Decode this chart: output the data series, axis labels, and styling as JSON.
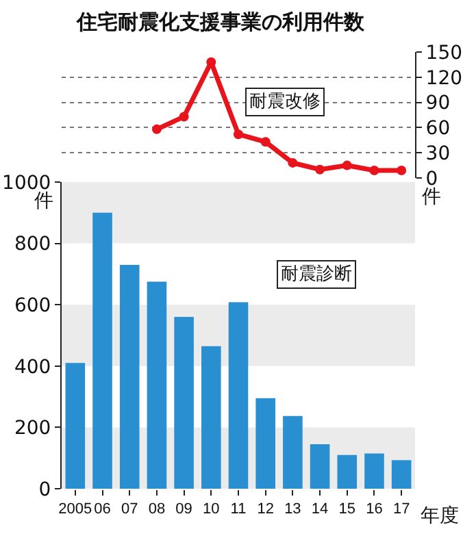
{
  "chart_data": [
    {
      "type": "line",
      "title": "住宅耐震化支援事業の利用件数",
      "ylabel": "件",
      "categories": [
        "2005",
        "06",
        "07",
        "08",
        "09",
        "10",
        "11",
        "12",
        "13",
        "14",
        "15",
        "16",
        "17"
      ],
      "series": [
        {
          "name": "耐震改修",
          "color": "#e8141c",
          "values": [
            null,
            null,
            null,
            58,
            73,
            138,
            52,
            43,
            18,
            10,
            15,
            9,
            9
          ]
        }
      ],
      "ylim": [
        0,
        150
      ],
      "yticks": [
        0,
        30,
        60,
        90,
        120,
        150
      ],
      "grid": "y",
      "marker": "circle",
      "line_style": "solid",
      "tick_labels": "y"
    },
    {
      "type": "bar",
      "xlabel": "年度",
      "ylabel": "件",
      "categories": [
        "2005",
        "06",
        "07",
        "08",
        "09",
        "10",
        "11",
        "12",
        "13",
        "14",
        "15",
        "16",
        "17"
      ],
      "series": [
        {
          "name": "耐震診断",
          "color": "#2a8fd0",
          "values": [
            410,
            900,
            730,
            675,
            560,
            465,
            608,
            295,
            237,
            145,
            110,
            115,
            93
          ]
        }
      ],
      "ylim": [
        0,
        1000
      ],
      "yticks": [
        0,
        200,
        400,
        600,
        800,
        1000
      ],
      "bands": [
        {
          "axis": "y",
          "from": 0,
          "to": 200,
          "color": "#ebebeb"
        },
        {
          "axis": "y",
          "from": 400,
          "to": 600,
          "color": "#ebebeb"
        },
        {
          "axis": "y",
          "from": 800,
          "to": 1000,
          "color": "#ebebeb"
        }
      ]
    }
  ]
}
